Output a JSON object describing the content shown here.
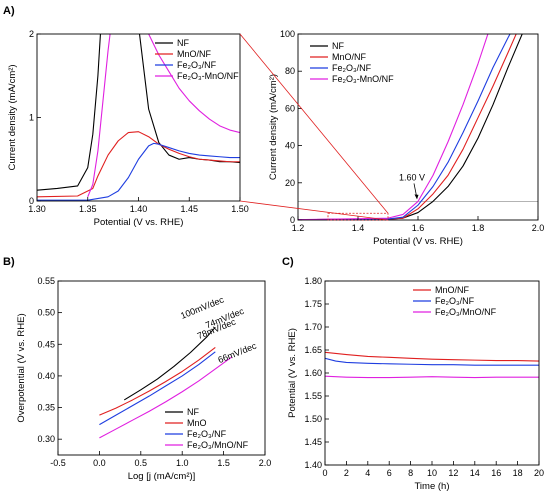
{
  "panel_labels": [
    "A)",
    "B)",
    "C)"
  ],
  "chart_data": [
    {
      "id": "A_inset",
      "type": "line",
      "xlabel": "Potential (V vs. RHE)",
      "ylabel": "Current density (mA/cm²)",
      "xlim": [
        1.3,
        1.5
      ],
      "ylim": [
        0,
        2
      ],
      "xticks": [
        1.3,
        1.35,
        1.4,
        1.45,
        1.5
      ],
      "xtick_labels": [
        "1.30",
        "1.35",
        "1.40",
        "1.45",
        "1.50"
      ],
      "yticks": [
        0,
        1,
        2
      ],
      "ytick_labels": [
        "0",
        "1",
        "2"
      ],
      "legend_position": "top-right",
      "series": [
        {
          "name": "NF",
          "color": "#000000",
          "x": [
            1.3,
            1.32,
            1.34,
            1.35,
            1.355,
            1.36,
            1.363,
            1.366,
            1.4,
            1.405,
            1.41,
            1.42,
            1.43,
            1.44,
            1.45,
            1.46,
            1.47,
            1.48,
            1.49,
            1.5
          ],
          "y": [
            0.13,
            0.15,
            0.18,
            0.4,
            0.8,
            1.5,
            2.1,
            2.1,
            2.1,
            1.6,
            1.1,
            0.7,
            0.55,
            0.5,
            0.52,
            0.5,
            0.49,
            0.47,
            0.47,
            0.46
          ]
        },
        {
          "name": "MnO/NF",
          "color": "#e02020",
          "x": [
            1.3,
            1.34,
            1.355,
            1.36,
            1.37,
            1.38,
            1.39,
            1.4,
            1.41,
            1.42,
            1.43,
            1.44,
            1.45,
            1.46,
            1.47,
            1.48,
            1.49,
            1.5
          ],
          "y": [
            0.05,
            0.06,
            0.15,
            0.3,
            0.55,
            0.72,
            0.82,
            0.83,
            0.77,
            0.68,
            0.62,
            0.57,
            0.53,
            0.5,
            0.49,
            0.48,
            0.47,
            0.47
          ]
        },
        {
          "name": "Fe₂O₃/NF",
          "color": "#1f3ee0",
          "x": [
            1.3,
            1.35,
            1.37,
            1.38,
            1.39,
            1.4,
            1.41,
            1.415,
            1.42,
            1.43,
            1.44,
            1.45,
            1.46,
            1.47,
            1.48,
            1.49,
            1.5
          ],
          "y": [
            0.01,
            0.01,
            0.05,
            0.12,
            0.28,
            0.5,
            0.66,
            0.69,
            0.68,
            0.64,
            0.6,
            0.57,
            0.55,
            0.54,
            0.53,
            0.52,
            0.52
          ]
        },
        {
          "name": "Fe₂O₃-MnO/NF",
          "color": "#e020e0",
          "x": [
            1.35,
            1.355,
            1.36,
            1.365,
            1.37,
            1.373,
            1.4,
            1.41,
            1.42,
            1.43,
            1.44,
            1.45,
            1.46,
            1.47,
            1.48,
            1.49,
            1.5
          ],
          "y": [
            0.05,
            0.2,
            0.6,
            1.2,
            1.8,
            2.1,
            2.1,
            2.0,
            1.75,
            1.55,
            1.35,
            1.2,
            1.08,
            0.98,
            0.9,
            0.85,
            0.82
          ]
        }
      ]
    },
    {
      "id": "A_main",
      "type": "line",
      "xlabel": "Potential (V vs. RHE)",
      "ylabel": "Current density (mA/cm²)",
      "xlim": [
        1.2,
        2.0
      ],
      "ylim": [
        0,
        100
      ],
      "xticks": [
        1.2,
        1.4,
        1.6,
        1.8,
        2.0
      ],
      "xtick_labels": [
        "1.2",
        "1.4",
        "1.6",
        "1.8",
        "2.0"
      ],
      "yticks": [
        0,
        20,
        40,
        60,
        80,
        100
      ],
      "ytick_labels": [
        "0",
        "20",
        "40",
        "60",
        "80",
        "100"
      ],
      "legend_position": "top-left",
      "reference_line_y": 10,
      "annotation": {
        "text": "1.60 V",
        "x": 1.6,
        "y": 10
      },
      "series": [
        {
          "name": "NF",
          "color": "#000000",
          "x": [
            1.2,
            1.5,
            1.55,
            1.6,
            1.65,
            1.7,
            1.75,
            1.8,
            1.85,
            1.9,
            1.95
          ],
          "y": [
            0.2,
            0.5,
            1,
            4,
            10,
            18,
            29,
            44,
            62,
            82,
            101
          ]
        },
        {
          "name": "MnO/NF",
          "color": "#e02020",
          "x": [
            1.2,
            1.5,
            1.55,
            1.6,
            1.65,
            1.7,
            1.75,
            1.8,
            1.85,
            1.9,
            1.93
          ],
          "y": [
            0.2,
            0.5,
            1,
            6,
            14,
            24,
            38,
            55,
            72,
            90,
            101
          ]
        },
        {
          "name": "Fe₂O₃/NF",
          "color": "#1f3ee0",
          "x": [
            1.2,
            1.5,
            1.55,
            1.6,
            1.65,
            1.7,
            1.75,
            1.8,
            1.85,
            1.9,
            1.91
          ],
          "y": [
            0.2,
            0.5,
            1.5,
            8,
            18,
            31,
            47,
            64,
            82,
            98,
            101
          ]
        },
        {
          "name": "Fe₂O₃-MnO/NF",
          "color": "#e020e0",
          "x": [
            1.2,
            1.5,
            1.55,
            1.6,
            1.65,
            1.7,
            1.75,
            1.8,
            1.835
          ],
          "y": [
            0.2,
            1,
            3,
            10,
            24,
            42,
            62,
            84,
            101
          ]
        }
      ]
    },
    {
      "id": "B",
      "type": "line",
      "xlabel": "Log [j (mA/cm²)]",
      "ylabel": "Overpotential (V vs. RHE)",
      "xlim": [
        -0.5,
        2.0
      ],
      "ylim": [
        0.275,
        0.55
      ],
      "xticks": [
        -0.5,
        0.0,
        0.5,
        1.0,
        1.5,
        2.0
      ],
      "xtick_labels": [
        "-0.5",
        "0.0",
        "0.5",
        "1.0",
        "1.5",
        "2.0"
      ],
      "yticks": [
        0.3,
        0.35,
        0.4,
        0.45,
        0.5,
        0.55
      ],
      "ytick_labels": [
        "0.30",
        "0.35",
        "0.40",
        "0.45",
        "0.50",
        "0.55"
      ],
      "legend_position": "bottom-right",
      "slope_labels": [
        {
          "text": "100mV/dec",
          "color": "#000000",
          "x": 1.0,
          "y": 0.49
        },
        {
          "text": "74mV/dec",
          "color": "#e02020",
          "x": 1.3,
          "y": 0.475
        },
        {
          "text": "78mV/dec",
          "color": "#1f3ee0",
          "x": 1.2,
          "y": 0.458
        },
        {
          "text": "66mV/dec",
          "color": "#e020e0",
          "x": 1.45,
          "y": 0.42
        }
      ],
      "series": [
        {
          "name": "NF",
          "color": "#000000",
          "x": [
            0.3,
            0.5,
            0.7,
            0.9,
            1.1,
            1.3,
            1.4
          ],
          "y": [
            0.362,
            0.378,
            0.395,
            0.415,
            0.437,
            0.462,
            0.477
          ]
        },
        {
          "name": "MnO",
          "color": "#e02020",
          "x": [
            0.0,
            0.2,
            0.4,
            0.6,
            0.8,
            1.0,
            1.2,
            1.4
          ],
          "y": [
            0.338,
            0.349,
            0.362,
            0.376,
            0.391,
            0.407,
            0.425,
            0.445
          ]
        },
        {
          "name": "Fe₂O₃/NF",
          "color": "#1f3ee0",
          "x": [
            0.0,
            0.2,
            0.4,
            0.6,
            0.8,
            1.0,
            1.2,
            1.4
          ],
          "y": [
            0.323,
            0.338,
            0.353,
            0.368,
            0.384,
            0.4,
            0.418,
            0.438
          ]
        },
        {
          "name": "Fe₂O₃/MnO/NF",
          "color": "#e020e0",
          "x": [
            0.0,
            0.2,
            0.4,
            0.6,
            0.8,
            1.0,
            1.2,
            1.4,
            1.6
          ],
          "y": [
            0.302,
            0.316,
            0.33,
            0.344,
            0.359,
            0.375,
            0.392,
            0.411,
            0.43
          ]
        }
      ]
    },
    {
      "id": "C",
      "type": "line",
      "xlabel": "Time (h)",
      "ylabel": "Potential (V vs. RHE)",
      "xlim": [
        0,
        20
      ],
      "ylim": [
        1.4,
        1.8
      ],
      "xticks": [
        0,
        2,
        4,
        6,
        8,
        10,
        12,
        14,
        16,
        18,
        20
      ],
      "xtick_labels": [
        "0",
        "2",
        "4",
        "6",
        "8",
        "10",
        "12",
        "14",
        "16",
        "18",
        "20"
      ],
      "yticks": [
        1.4,
        1.45,
        1.5,
        1.55,
        1.6,
        1.65,
        1.7,
        1.75,
        1.8
      ],
      "ytick_labels": [
        "1.40",
        "1.45",
        "1.50",
        "1.55",
        "1.60",
        "1.65",
        "1.70",
        "1.75",
        "1.80"
      ],
      "legend_position": "top-right",
      "series": [
        {
          "name": "MnO/NF",
          "color": "#e02020",
          "x": [
            0,
            2,
            4,
            6,
            8,
            10,
            12,
            14,
            16,
            18,
            20
          ],
          "y": [
            1.645,
            1.64,
            1.636,
            1.634,
            1.632,
            1.63,
            1.629,
            1.628,
            1.627,
            1.627,
            1.626
          ]
        },
        {
          "name": "Fe₂O₃/NF",
          "color": "#1f3ee0",
          "x": [
            0,
            1,
            2,
            4,
            6,
            8,
            10,
            12,
            14,
            16,
            18,
            20
          ],
          "y": [
            1.632,
            1.626,
            1.623,
            1.621,
            1.62,
            1.619,
            1.618,
            1.618,
            1.617,
            1.617,
            1.617,
            1.617
          ]
        },
        {
          "name": "Fe₂O₃/MnO/NF",
          "color": "#e020e0",
          "x": [
            0,
            2,
            4,
            6,
            8,
            10,
            12,
            14,
            16,
            18,
            20
          ],
          "y": [
            1.593,
            1.591,
            1.59,
            1.59,
            1.591,
            1.592,
            1.591,
            1.59,
            1.591,
            1.591,
            1.591
          ]
        }
      ]
    }
  ]
}
